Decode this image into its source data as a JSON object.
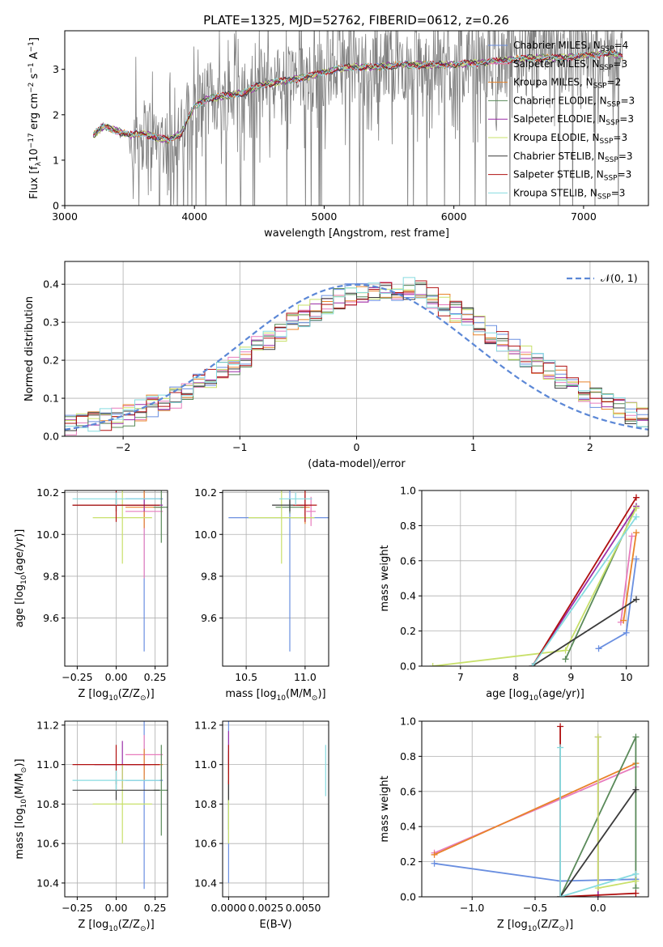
{
  "title": "PLATE=1325, MJD=52762, FIBERID=0612, z=0.26",
  "colors": {
    "Chabrier MILES": "#6a8fe0",
    "Salpeter MILES": "#e87cbd",
    "Kroupa MILES": "#e8832a",
    "Chabrier ELODIE": "#5a8a5a",
    "Salpeter ELODIE": "#9b2fa8",
    "Kroupa ELODIE": "#c8e06a",
    "Chabrier STELIB": "#3a3a3a",
    "Salpeter STELIB": "#b01010",
    "Kroupa STELIB": "#86dbe0",
    "data": "#808080",
    "grid": "#b0b0b0"
  },
  "chart_data": [
    {
      "type": "line",
      "id": "spectrum",
      "title": "PLATE=1325, MJD=52762, FIBERID=0612, z=0.26",
      "xlabel": "wavelength [Angstrom, rest frame]",
      "ylabel_parts": [
        "Flux [f",
        "λ",
        "10",
        "−17",
        " erg cm",
        "−2",
        " s",
        "−1",
        " A",
        "−1",
        "]"
      ],
      "xlim": [
        3000,
        7500
      ],
      "ylim": [
        0,
        3.85
      ],
      "xticks": [
        "3000",
        "4000",
        "5000",
        "6000",
        "7000"
      ],
      "yticks": [
        "0",
        "1",
        "2",
        "3"
      ],
      "legend": [
        {
          "base": "Chabrier MILES, N",
          "sub": "SSP",
          "tail": "=4"
        },
        {
          "base": "Salpeter MILES, N",
          "sub": "SSP",
          "tail": "=3"
        },
        {
          "base": "Kroupa MILES, N",
          "sub": "SSP",
          "tail": "=2"
        },
        {
          "base": "Chabrier ELODIE, N",
          "sub": "SSP",
          "tail": "=3"
        },
        {
          "base": "Salpeter ELODIE, N",
          "sub": "SSP",
          "tail": "=3"
        },
        {
          "base": "Kroupa ELODIE, N",
          "sub": "SSP",
          "tail": "=3"
        },
        {
          "base": "Chabrier STELIB, N",
          "sub": "SSP",
          "tail": "=3"
        },
        {
          "base": "Salpeter STELIB, N",
          "sub": "SSP",
          "tail": "=3"
        },
        {
          "base": "Kroupa STELIB, N",
          "sub": "SSP",
          "tail": "=3"
        }
      ],
      "legend_loc": "upper right",
      "model_continuum": {
        "x": [
          3220,
          3300,
          3400,
          3500,
          3600,
          3700,
          3800,
          3900,
          4000,
          4100,
          4200,
          4300,
          4400,
          4500,
          4600,
          4700,
          4800,
          4900,
          5000,
          5200,
          5400,
          5600,
          5800,
          6000,
          6200,
          6400,
          6600,
          6800,
          7000,
          7200,
          7300
        ],
        "y": [
          1.55,
          1.75,
          1.65,
          1.55,
          1.6,
          1.5,
          1.45,
          1.6,
          2.2,
          2.35,
          2.4,
          2.45,
          2.5,
          2.65,
          2.7,
          2.75,
          2.8,
          2.85,
          2.95,
          3.05,
          3.05,
          3.1,
          3.1,
          3.1,
          3.15,
          3.2,
          3.25,
          3.25,
          3.3,
          3.35,
          3.3
        ]
      },
      "data_trace": "noisy observed spectrum (gray) from 3220 to 7300 Angstrom"
    },
    {
      "type": "line",
      "id": "residuals",
      "xlabel": "(data-model)/error",
      "ylabel": "Normed distribution",
      "xlim": [
        -2.5,
        2.5
      ],
      "ylim": [
        0,
        0.46
      ],
      "xticks": [
        "−2",
        "−1",
        "0",
        "1",
        "2"
      ],
      "yticks": [
        "0.0",
        "0.1",
        "0.2",
        "0.3",
        "0.4"
      ],
      "legend": [
        "𝒩(0, 1)"
      ],
      "legend_loc": "upper right",
      "gaussian": {
        "mu": 0,
        "sigma": 1
      },
      "histogram_envelope": {
        "x": [
          -2.5,
          -2.0,
          -1.5,
          -1.0,
          -0.5,
          0.0,
          0.5,
          1.0,
          1.5,
          2.0,
          2.5
        ],
        "y": [
          0.03,
          0.05,
          0.11,
          0.2,
          0.31,
          0.38,
          0.39,
          0.3,
          0.2,
          0.11,
          0.04
        ]
      }
    },
    {
      "type": "scatter",
      "id": "age-vs-Z",
      "xlabel_parts": [
        "Z [log",
        "10",
        "(Z/Z",
        "⊙",
        ")]"
      ],
      "ylabel_parts": [
        "age  [log",
        "10",
        "(age/yr)]"
      ],
      "xlim": [
        -0.33,
        0.33
      ],
      "ylim": [
        9.37,
        10.21
      ],
      "xticks": [
        "−0.25",
        "0.00",
        "0.25"
      ],
      "yticks": [
        "9.6",
        "9.8",
        "10.0",
        "10.2"
      ],
      "points": [
        {
          "model": "Chabrier MILES",
          "x": 0.18,
          "y": 10.17,
          "xerr": 0.12,
          "yerr": 0.73
        },
        {
          "model": "Salpeter MILES",
          "x": 0.18,
          "y": 10.11,
          "xerr": 0.12,
          "yerr": 0.32
        },
        {
          "model": "Kroupa MILES",
          "x": 0.18,
          "y": 10.13,
          "xerr": 0.12,
          "yerr": 0.1
        },
        {
          "model": "Chabrier ELODIE",
          "x": 0.29,
          "y": 10.13,
          "xerr": 0.05,
          "yerr": 0.17
        },
        {
          "model": "Salpeter ELODIE",
          "x": 0.18,
          "y": 10.14,
          "xerr": 0.12,
          "yerr": 0.03
        },
        {
          "model": "Kroupa ELODIE",
          "x": 0.04,
          "y": 10.08,
          "xerr": 0.19,
          "yerr": 0.22
        },
        {
          "model": "Chabrier STELIB",
          "x": 0.0,
          "y": 10.14,
          "xerr": 0.28,
          "yerr": 0.03
        },
        {
          "model": "Salpeter STELIB",
          "x": 0.0,
          "y": 10.14,
          "xerr": 0.28,
          "yerr": 0.08
        },
        {
          "model": "Kroupa STELIB",
          "x": 0.0,
          "y": 10.17,
          "xerr": 0.28,
          "yerr": 0.03
        }
      ]
    },
    {
      "type": "scatter",
      "id": "age-vs-mass",
      "xlabel_parts": [
        "mass [log",
        "10",
        "(M/M",
        "⊙",
        ")]"
      ],
      "xlim": [
        10.3,
        11.2
      ],
      "ylim": [
        9.37,
        10.21
      ],
      "xticks": [
        "10.5",
        "11.0"
      ],
      "yticks": [
        "9.6",
        "9.8",
        "10.0",
        "10.2"
      ],
      "points": [
        {
          "model": "Chabrier MILES",
          "x": 10.87,
          "y": 10.08,
          "xerr": 0.52,
          "yerr": 0.64
        },
        {
          "model": "Salpeter MILES",
          "x": 11.05,
          "y": 10.11,
          "xerr": 0.04,
          "yerr": 0.07
        },
        {
          "model": "Kroupa MILES",
          "x": 11.0,
          "y": 10.13,
          "xerr": 0.04,
          "yerr": 0.08
        },
        {
          "model": "Chabrier ELODIE",
          "x": 10.87,
          "y": 10.13,
          "xerr": 0.12,
          "yerr": 0.03
        },
        {
          "model": "Salpeter ELODIE",
          "x": 11.0,
          "y": 10.14,
          "xerr": 0.05,
          "yerr": 0.05
        },
        {
          "model": "Kroupa ELODIE",
          "x": 10.8,
          "y": 10.08,
          "xerr": 0.28,
          "yerr": 0.22
        },
        {
          "model": "Chabrier STELIB",
          "x": 10.87,
          "y": 10.14,
          "xerr": 0.15,
          "yerr": 0.03
        },
        {
          "model": "Salpeter STELIB",
          "x": 11.0,
          "y": 10.14,
          "xerr": 0.1,
          "yerr": 0.08
        },
        {
          "model": "Kroupa STELIB",
          "x": 10.92,
          "y": 10.17,
          "xerr": 0.14,
          "yerr": 0.03
        }
      ]
    },
    {
      "type": "line",
      "id": "weight-vs-age",
      "xlabel_parts": [
        "age  [log",
        "10",
        "(age/yr)]"
      ],
      "ylabel": "mass weight",
      "xlim": [
        6.3,
        10.4
      ],
      "ylim": [
        0,
        1
      ],
      "xticks": [
        "7",
        "8",
        "9",
        "10"
      ],
      "yticks": [
        "0.0",
        "0.2",
        "0.4",
        "0.6",
        "0.8",
        "1.0"
      ],
      "series": [
        {
          "name": "Chabrier MILES",
          "x": [
            9.5,
            10.0,
            10.18
          ],
          "y": [
            0.1,
            0.19,
            0.61
          ]
        },
        {
          "name": "Salpeter MILES",
          "x": [
            9.9,
            10.1
          ],
          "y": [
            0.25,
            0.74
          ]
        },
        {
          "name": "Kroupa MILES",
          "x": [
            9.95,
            10.18
          ],
          "y": [
            0.26,
            0.76
          ]
        },
        {
          "name": "Chabrier ELODIE",
          "x": [
            8.9,
            10.18
          ],
          "y": [
            0.04,
            0.91
          ]
        },
        {
          "name": "Salpeter ELODIE",
          "x": [
            8.3,
            10.18
          ],
          "y": [
            0.0,
            0.91
          ]
        },
        {
          "name": "Kroupa ELODIE",
          "x": [
            6.5,
            8.9,
            10.18
          ],
          "y": [
            0.0,
            0.09,
            0.9
          ]
        },
        {
          "name": "Chabrier STELIB",
          "x": [
            8.3,
            10.18
          ],
          "y": [
            0.0,
            0.38
          ]
        },
        {
          "name": "Salpeter STELIB",
          "x": [
            8.3,
            10.18
          ],
          "y": [
            0.0,
            0.96
          ]
        },
        {
          "name": "Kroupa STELIB",
          "x": [
            8.3,
            10.18
          ],
          "y": [
            0.0,
            0.85
          ]
        }
      ]
    },
    {
      "type": "scatter",
      "id": "mass-vs-Z",
      "xlabel_parts": [
        "Z [log",
        "10",
        "(Z/Z",
        "⊙",
        ")]"
      ],
      "ylabel_parts": [
        "mass [log",
        "10",
        "(M/M",
        "⊙",
        ")]"
      ],
      "xlim": [
        -0.33,
        0.33
      ],
      "ylim": [
        10.33,
        11.22
      ],
      "xticks": [
        "−0.25",
        "0.00",
        "0.25"
      ],
      "yticks": [
        "10.4",
        "10.6",
        "10.8",
        "11.0",
        "11.2"
      ],
      "points": [
        {
          "model": "Chabrier MILES",
          "x": 0.18,
          "y": 10.92,
          "xerr": 0.12,
          "yerr": 0.55
        },
        {
          "model": "Salpeter MILES",
          "x": 0.18,
          "y": 11.05,
          "xerr": 0.12,
          "yerr": 0.1
        },
        {
          "model": "Kroupa MILES",
          "x": 0.18,
          "y": 11.0,
          "xerr": 0.12,
          "yerr": 0.08
        },
        {
          "model": "Chabrier ELODIE",
          "x": 0.29,
          "y": 10.87,
          "xerr": 0.05,
          "yerr": 0.23
        },
        {
          "model": "Salpeter ELODIE",
          "x": 0.04,
          "y": 11.0,
          "xerr": 0.18,
          "yerr": 0.12
        },
        {
          "model": "Kroupa ELODIE",
          "x": 0.04,
          "y": 10.8,
          "xerr": 0.19,
          "yerr": 0.2
        },
        {
          "model": "Chabrier STELIB",
          "x": 0.0,
          "y": 10.87,
          "xerr": 0.28,
          "yerr": 0.05
        },
        {
          "model": "Salpeter STELIB",
          "x": 0.0,
          "y": 11.0,
          "xerr": 0.28,
          "yerr": 0.1
        },
        {
          "model": "Kroupa STELIB",
          "x": 0.0,
          "y": 10.92,
          "xerr": 0.28,
          "yerr": 0.05
        }
      ]
    },
    {
      "type": "scatter",
      "id": "mass-vs-ebv",
      "xlabel": "E(B-V)",
      "xlim": [
        -0.0004,
        0.0067
      ],
      "ylim": [
        10.33,
        11.22
      ],
      "xticks": [
        "0.0000",
        "0.0025",
        "0.0050"
      ],
      "yticks": [
        "10.4",
        "10.6",
        "10.8",
        "11.0",
        "11.2"
      ],
      "points": [
        {
          "model": "Chabrier MILES",
          "x": 0.0,
          "y": 10.9,
          "yerr": 0.5
        },
        {
          "model": "Salpeter MILES",
          "x": 0.0,
          "y": 11.0,
          "yerr": 0.05
        },
        {
          "model": "Kroupa MILES",
          "x": 0.0,
          "y": 11.0,
          "yerr": 0.05
        },
        {
          "model": "Chabrier ELODIE",
          "x": 0.0,
          "y": 10.87,
          "yerr": 0.2
        },
        {
          "model": "Salpeter ELODIE",
          "x": 0.0,
          "y": 11.0,
          "yerr": 0.17
        },
        {
          "model": "Kroupa ELODIE",
          "x": 0.0,
          "y": 10.8,
          "yerr": 0.2
        },
        {
          "model": "Chabrier STELIB",
          "x": 0.0,
          "y": 10.87,
          "yerr": 0.05
        },
        {
          "model": "Salpeter STELIB",
          "x": 0.0,
          "y": 11.0,
          "yerr": 0.1
        },
        {
          "model": "Kroupa STELIB",
          "x": 0.0065,
          "y": 10.97,
          "yerr": 0.13
        }
      ]
    },
    {
      "type": "line",
      "id": "weight-vs-Z",
      "xlabel_parts": [
        "Z [log",
        "10",
        "(Z/Z",
        "⊙",
        ")]"
      ],
      "ylabel": "mass weight",
      "xlim": [
        -1.4,
        0.4
      ],
      "ylim": [
        0,
        1
      ],
      "xticks": [
        "−1.0",
        "−0.5",
        "0.0"
      ],
      "yticks": [
        "0.0",
        "0.2",
        "0.4",
        "0.6",
        "0.8",
        "1.0"
      ],
      "series": [
        {
          "name": "Chabrier MILES",
          "x": [
            -1.3,
            -0.3,
            0.3
          ],
          "y": [
            0.19,
            0.09,
            0.1
          ]
        },
        {
          "name": "Salpeter MILES",
          "x": [
            -1.3,
            0.3
          ],
          "y": [
            0.25,
            0.74
          ]
        },
        {
          "name": "Kroupa MILES",
          "x": [
            -1.3,
            0.3
          ],
          "y": [
            0.24,
            0.76
          ]
        },
        {
          "name": "Chabrier ELODIE",
          "x": [
            -0.3,
            0.3,
            0.3
          ],
          "y": [
            0.0,
            0.91,
            0.05
          ]
        },
        {
          "name": "Salpeter ELODIE",
          "x": [
            0.0,
            0.0
          ],
          "y": [
            0.0,
            0.91
          ]
        },
        {
          "name": "Kroupa ELODIE",
          "x": [
            0.0,
            0.0,
            0.3
          ],
          "y": [
            0.91,
            0.05,
            0.09
          ]
        },
        {
          "name": "Chabrier STELIB",
          "x": [
            -0.3,
            0.3
          ],
          "y": [
            0.0,
            0.61
          ]
        },
        {
          "name": "Salpeter STELIB",
          "x": [
            -0.3,
            -0.3,
            0.3
          ],
          "y": [
            0.97,
            0.0,
            0.02
          ]
        },
        {
          "name": "Kroupa STELIB",
          "x": [
            -0.3,
            -0.3,
            0.3
          ],
          "y": [
            0.85,
            0.0,
            0.13
          ]
        }
      ]
    }
  ]
}
